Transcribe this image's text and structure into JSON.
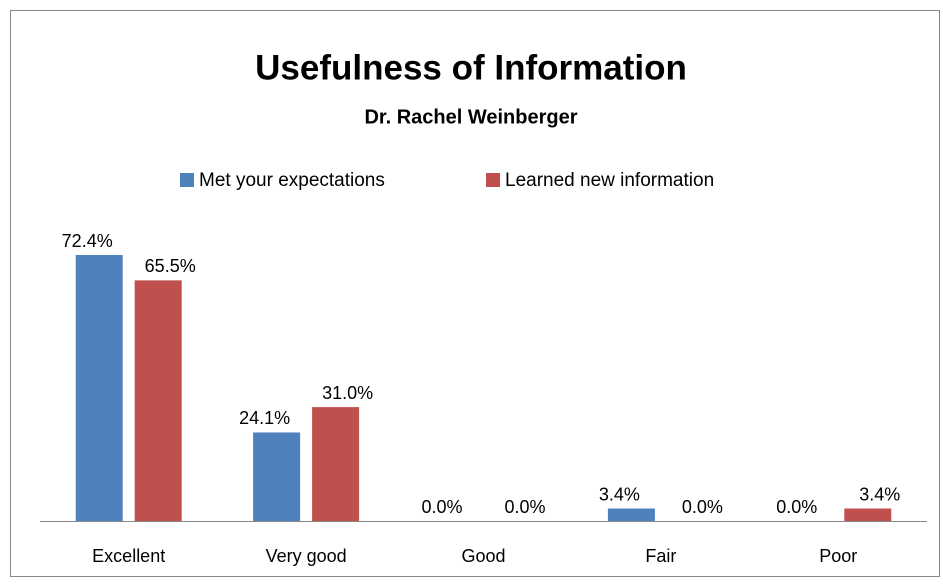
{
  "chart_data": {
    "type": "bar",
    "title": "Usefulness of Information",
    "subtitle": "Dr. Rachel Weinberger",
    "categories": [
      "Excellent",
      "Very good",
      "Good",
      "Fair",
      "Poor"
    ],
    "series": [
      {
        "name": "Met your expectations",
        "color": "#4f81bd",
        "values": [
          72.4,
          24.1,
          0.0,
          3.4,
          0.0
        ],
        "value_labels": [
          "72.4%",
          "24.1%",
          "0.0%",
          "3.4%",
          "0.0%"
        ]
      },
      {
        "name": "Learned new information",
        "color": "#c0504d",
        "values": [
          65.5,
          31.0,
          0.0,
          0.0,
          3.4
        ],
        "value_labels": [
          "65.5%",
          "31.0%",
          "0.0%",
          "0.0%",
          "3.4%"
        ]
      }
    ],
    "legend": "top"
  }
}
